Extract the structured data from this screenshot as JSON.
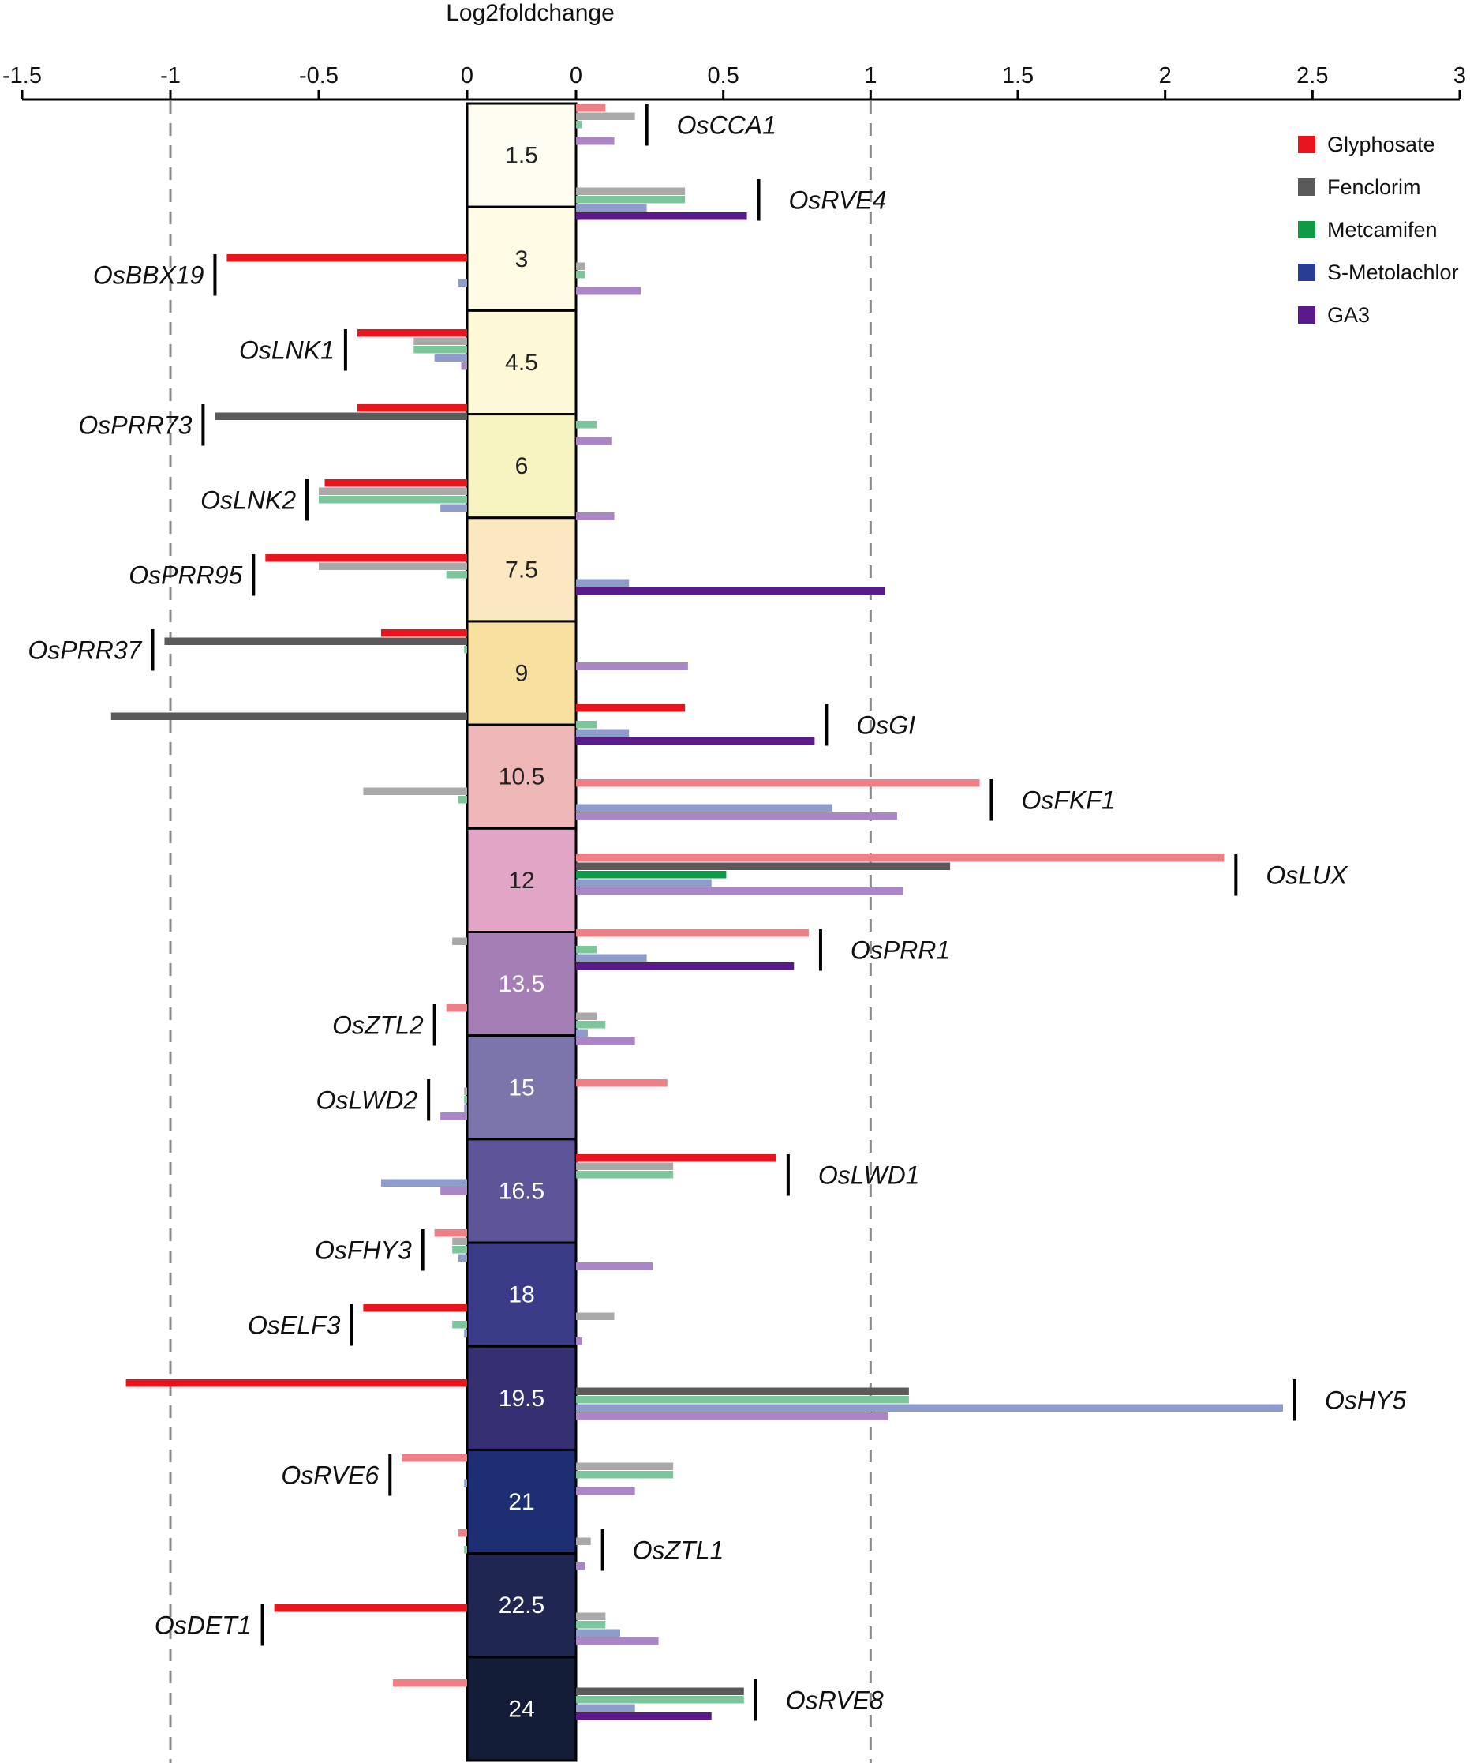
{
  "chart_data": {
    "type": "bar",
    "orientation": "horizontal",
    "title": "Log2foldchange",
    "xlabel": "Log2foldchange",
    "left_axis": {
      "range": [
        -1.5,
        0
      ],
      "ticks": [
        -1.5,
        -1,
        -0.5,
        0
      ],
      "tick_labels": [
        "-1.5",
        "-1",
        "-0.5",
        "0"
      ]
    },
    "right_axis": {
      "range": [
        0,
        3
      ],
      "ticks": [
        0,
        0.5,
        1,
        1.5,
        2,
        2.5,
        3
      ],
      "tick_labels": [
        "0",
        "0.5",
        "1",
        "1.5",
        "2",
        "2.5",
        "3"
      ]
    },
    "reference_lines": [
      -1,
      1
    ],
    "legend": {
      "position": "top-right"
    },
    "series": [
      {
        "name": "Glyphosate",
        "color": "#e8141e"
      },
      {
        "name": "Fenclorim",
        "color": "#5a5a5a"
      },
      {
        "name": "Metcamifen",
        "color": "#0f9a45"
      },
      {
        "name": "S-Metolachlor",
        "color": "#2a3d96"
      },
      {
        "name": "GA3",
        "color": "#5b1a8c"
      }
    ],
    "time_points": [
      {
        "label": "1.5",
        "color": "#fffdf2"
      },
      {
        "label": "3",
        "color": "#fffbe5"
      },
      {
        "label": "4.5",
        "color": "#fdf9d6"
      },
      {
        "label": "6",
        "color": "#f8f4c2"
      },
      {
        "label": "7.5",
        "color": "#fbe7c0"
      },
      {
        "label": "9",
        "color": "#f8e0a0"
      },
      {
        "label": "10.5",
        "color": "#efb8b8"
      },
      {
        "label": "12",
        "color": "#e1a5c5"
      },
      {
        "label": "13.5",
        "color": "#a47eb4"
      },
      {
        "label": "15",
        "color": "#7c75ac"
      },
      {
        "label": "16.5",
        "color": "#5e5598"
      },
      {
        "label": "18",
        "color": "#3a3c87"
      },
      {
        "label": "19.5",
        "color": "#343072"
      },
      {
        "label": "21",
        "color": "#1d2e72"
      },
      {
        "label": "22.5",
        "color": "#1f2652"
      },
      {
        "label": "24",
        "color": "#141d38"
      }
    ],
    "genes": [
      {
        "name": "OsCCA1",
        "side": "right",
        "values": [
          0.1,
          0.2,
          0.02,
          0.0,
          0.13
        ],
        "faded": [
          true,
          true,
          true,
          true,
          true
        ]
      },
      {
        "name": "OsRVE4",
        "side": "right",
        "values": [
          0.0,
          0.37,
          0.37,
          0.24,
          0.58
        ],
        "faded": [
          false,
          true,
          true,
          true,
          false
        ]
      },
      {
        "name": "OsBBX19",
        "side": "left",
        "values": [
          -0.81,
          0.03,
          0.03,
          -0.03,
          0.22
        ],
        "faded": [
          false,
          true,
          true,
          true,
          true
        ]
      },
      {
        "name": "OsLNK1",
        "side": "left",
        "values": [
          -0.37,
          -0.18,
          -0.18,
          -0.11,
          -0.02
        ],
        "faded": [
          false,
          true,
          true,
          true,
          true
        ]
      },
      {
        "name": "OsPRR73",
        "side": "left",
        "values": [
          -0.37,
          -0.85,
          0.07,
          0.0,
          0.12
        ],
        "faded": [
          false,
          false,
          true,
          true,
          true
        ]
      },
      {
        "name": "OsLNK2",
        "side": "left",
        "values": [
          -0.48,
          -0.5,
          -0.5,
          -0.09,
          0.13
        ],
        "faded": [
          false,
          true,
          true,
          true,
          true
        ]
      },
      {
        "name": "OsPRR95",
        "side": "left",
        "values": [
          -0.68,
          -0.5,
          -0.07,
          0.18,
          1.05
        ],
        "faded": [
          false,
          true,
          true,
          true,
          false
        ]
      },
      {
        "name": "OsPRR37",
        "side": "left",
        "values": [
          -0.29,
          -1.02,
          -0.01,
          0.0,
          0.38
        ],
        "faded": [
          false,
          false,
          true,
          true,
          true
        ]
      },
      {
        "name": "OsGI",
        "side": "right",
        "values": [
          0.37,
          -1.2,
          0.07,
          0.18,
          0.81
        ],
        "faded": [
          false,
          false,
          true,
          true,
          false
        ]
      },
      {
        "name": "OsFKF1",
        "side": "right",
        "values": [
          1.37,
          -0.35,
          -0.03,
          0.87,
          1.09
        ],
        "faded": [
          true,
          true,
          true,
          true,
          true
        ]
      },
      {
        "name": "OsLUX",
        "side": "right",
        "values": [
          2.2,
          1.27,
          0.51,
          0.46,
          1.11
        ],
        "faded": [
          true,
          false,
          false,
          true,
          true
        ]
      },
      {
        "name": "OsPRR1",
        "side": "right",
        "values": [
          0.79,
          -0.05,
          0.07,
          0.24,
          0.74
        ],
        "faded": [
          true,
          true,
          true,
          true,
          false
        ]
      },
      {
        "name": "OsZTL2",
        "side": "left",
        "values": [
          -0.07,
          0.07,
          0.1,
          0.04,
          0.2
        ],
        "faded": [
          true,
          true,
          true,
          true,
          true
        ]
      },
      {
        "name": "OsLWD2",
        "side": "left",
        "values": [
          0.31,
          -0.01,
          -0.01,
          -0.01,
          -0.09
        ],
        "faded": [
          true,
          true,
          true,
          true,
          true
        ]
      },
      {
        "name": "OsLWD1",
        "side": "right",
        "values": [
          0.68,
          0.33,
          0.33,
          -0.29,
          -0.09
        ],
        "faded": [
          false,
          true,
          true,
          true,
          true
        ]
      },
      {
        "name": "OsFHY3",
        "side": "left",
        "values": [
          -0.11,
          -0.05,
          -0.05,
          -0.03,
          0.26
        ],
        "faded": [
          true,
          true,
          true,
          true,
          true
        ]
      },
      {
        "name": "OsELF3",
        "side": "left",
        "values": [
          -0.35,
          0.13,
          -0.05,
          -0.01,
          0.02
        ],
        "faded": [
          false,
          true,
          true,
          true,
          true
        ]
      },
      {
        "name": "OsHY5",
        "side": "right",
        "values": [
          -1.15,
          1.13,
          1.13,
          2.4,
          1.06
        ],
        "faded": [
          false,
          false,
          true,
          true,
          true
        ]
      },
      {
        "name": "OsRVE6",
        "side": "left",
        "values": [
          -0.22,
          0.33,
          0.33,
          -0.01,
          0.2
        ],
        "faded": [
          true,
          true,
          true,
          true,
          true
        ]
      },
      {
        "name": "OsZTL1",
        "side": "right",
        "values": [
          -0.03,
          0.05,
          -0.01,
          0.0,
          0.03
        ],
        "faded": [
          true,
          true,
          true,
          true,
          true
        ]
      },
      {
        "name": "OsDET1",
        "side": "left",
        "values": [
          -0.65,
          0.1,
          0.1,
          0.15,
          0.28
        ],
        "faded": [
          false,
          true,
          true,
          true,
          true
        ]
      },
      {
        "name": "OsRVE8",
        "side": "right",
        "values": [
          -0.25,
          0.57,
          0.57,
          0.2,
          0.46
        ],
        "faded": [
          true,
          false,
          true,
          true,
          false
        ]
      }
    ]
  }
}
